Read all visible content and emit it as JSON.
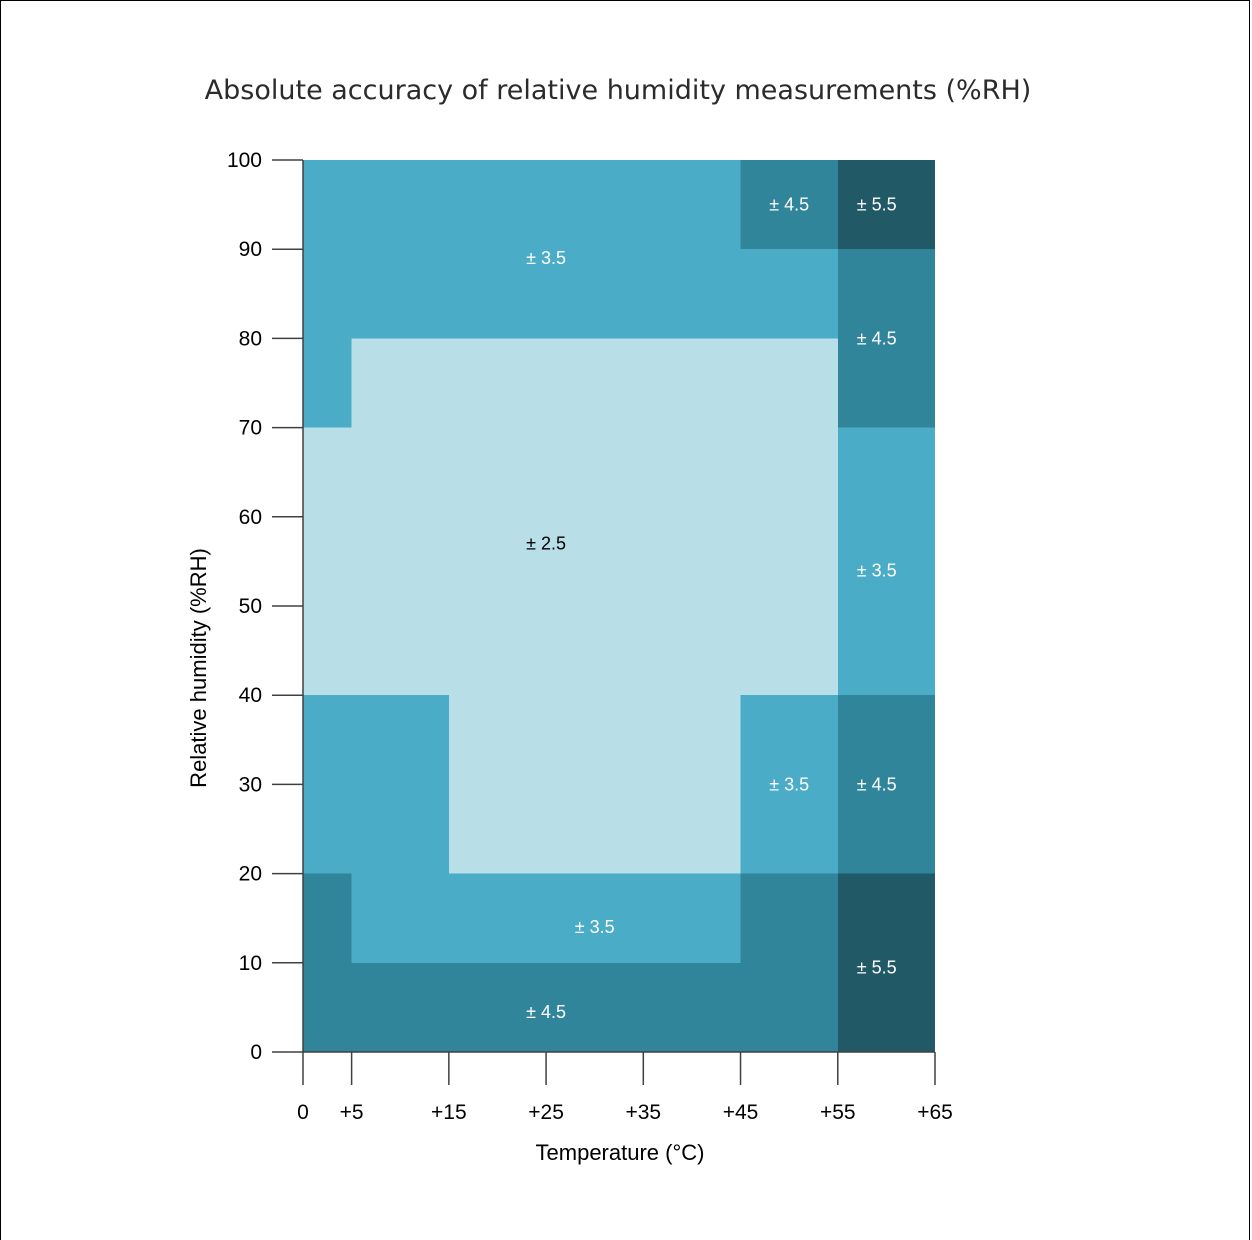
{
  "chart_data": {
    "type": "heatmap",
    "title": "Absolute accuracy of relative humidity measurements (%RH)",
    "xlabel": "Temperature (°C)",
    "ylabel": "Relative humidity (%RH)",
    "x_ticks": [
      0,
      5,
      15,
      25,
      35,
      45,
      55,
      65
    ],
    "x_tick_labels": [
      "0",
      "+5",
      "+15",
      "+25",
      "+35",
      "+45",
      "+55",
      "+65"
    ],
    "y_ticks": [
      0,
      10,
      20,
      30,
      40,
      50,
      60,
      70,
      80,
      90,
      100
    ],
    "y_tick_labels": [
      "0",
      "10",
      "20",
      "30",
      "40",
      "50",
      "60",
      "70",
      "80",
      "90",
      "100"
    ],
    "xlim": [
      0,
      65
    ],
    "ylim": [
      0,
      100
    ],
    "colors": {
      "2.5": "#b8dee8",
      "3.5": "#4aacc6",
      "4.5": "#31859b",
      "5.5": "#215967"
    },
    "regions": [
      {
        "x0": 0,
        "x1": 55,
        "y0": 80,
        "y1": 100,
        "accuracy": 3.5
      },
      {
        "x0": 45,
        "x1": 55,
        "y0": 90,
        "y1": 100,
        "accuracy": 4.5
      },
      {
        "x0": 55,
        "x1": 65,
        "y0": 90,
        "y1": 100,
        "accuracy": 5.5
      },
      {
        "x0": 55,
        "x1": 65,
        "y0": 70,
        "y1": 90,
        "accuracy": 4.5
      },
      {
        "x0": 0,
        "x1": 5,
        "y0": 70,
        "y1": 80,
        "accuracy": 3.5
      },
      {
        "x0": 5,
        "x1": 55,
        "y0": 40,
        "y1": 80,
        "accuracy": 2.5
      },
      {
        "x0": 0,
        "x1": 5,
        "y0": 40,
        "y1": 70,
        "accuracy": 2.5
      },
      {
        "x0": 15,
        "x1": 45,
        "y0": 20,
        "y1": 40,
        "accuracy": 2.5
      },
      {
        "x0": 55,
        "x1": 65,
        "y0": 40,
        "y1": 70,
        "accuracy": 3.5
      },
      {
        "x0": 0,
        "x1": 15,
        "y0": 20,
        "y1": 40,
        "accuracy": 3.5
      },
      {
        "x0": 45,
        "x1": 55,
        "y0": 20,
        "y1": 40,
        "accuracy": 3.5
      },
      {
        "x0": 55,
        "x1": 65,
        "y0": 20,
        "y1": 40,
        "accuracy": 4.5
      },
      {
        "x0": 5,
        "x1": 45,
        "y0": 10,
        "y1": 20,
        "accuracy": 3.5
      },
      {
        "x0": 0,
        "x1": 5,
        "y0": 0,
        "y1": 20,
        "accuracy": 4.5
      },
      {
        "x0": 5,
        "x1": 45,
        "y0": 0,
        "y1": 10,
        "accuracy": 4.5
      },
      {
        "x0": 45,
        "x1": 55,
        "y0": 0,
        "y1": 20,
        "accuracy": 4.5
      },
      {
        "x0": 55,
        "x1": 65,
        "y0": 0,
        "y1": 20,
        "accuracy": 5.5
      }
    ],
    "annotations": [
      {
        "text": "± 3.5",
        "x": 25,
        "y": 89
      },
      {
        "text": "± 4.5",
        "x": 50,
        "y": 95
      },
      {
        "text": "± 5.5",
        "x": 59,
        "y": 95
      },
      {
        "text": "± 4.5",
        "x": 59,
        "y": 80
      },
      {
        "text": "± 2.5",
        "x": 25,
        "y": 57
      },
      {
        "text": "± 3.5",
        "x": 59,
        "y": 54
      },
      {
        "text": "± 3.5",
        "x": 50,
        "y": 30
      },
      {
        "text": "± 4.5",
        "x": 59,
        "y": 30
      },
      {
        "text": "± 3.5",
        "x": 30,
        "y": 14
      },
      {
        "text": "± 4.5",
        "x": 25,
        "y": 4.5
      },
      {
        "text": "± 5.5",
        "x": 59,
        "y": 9.5
      }
    ]
  }
}
